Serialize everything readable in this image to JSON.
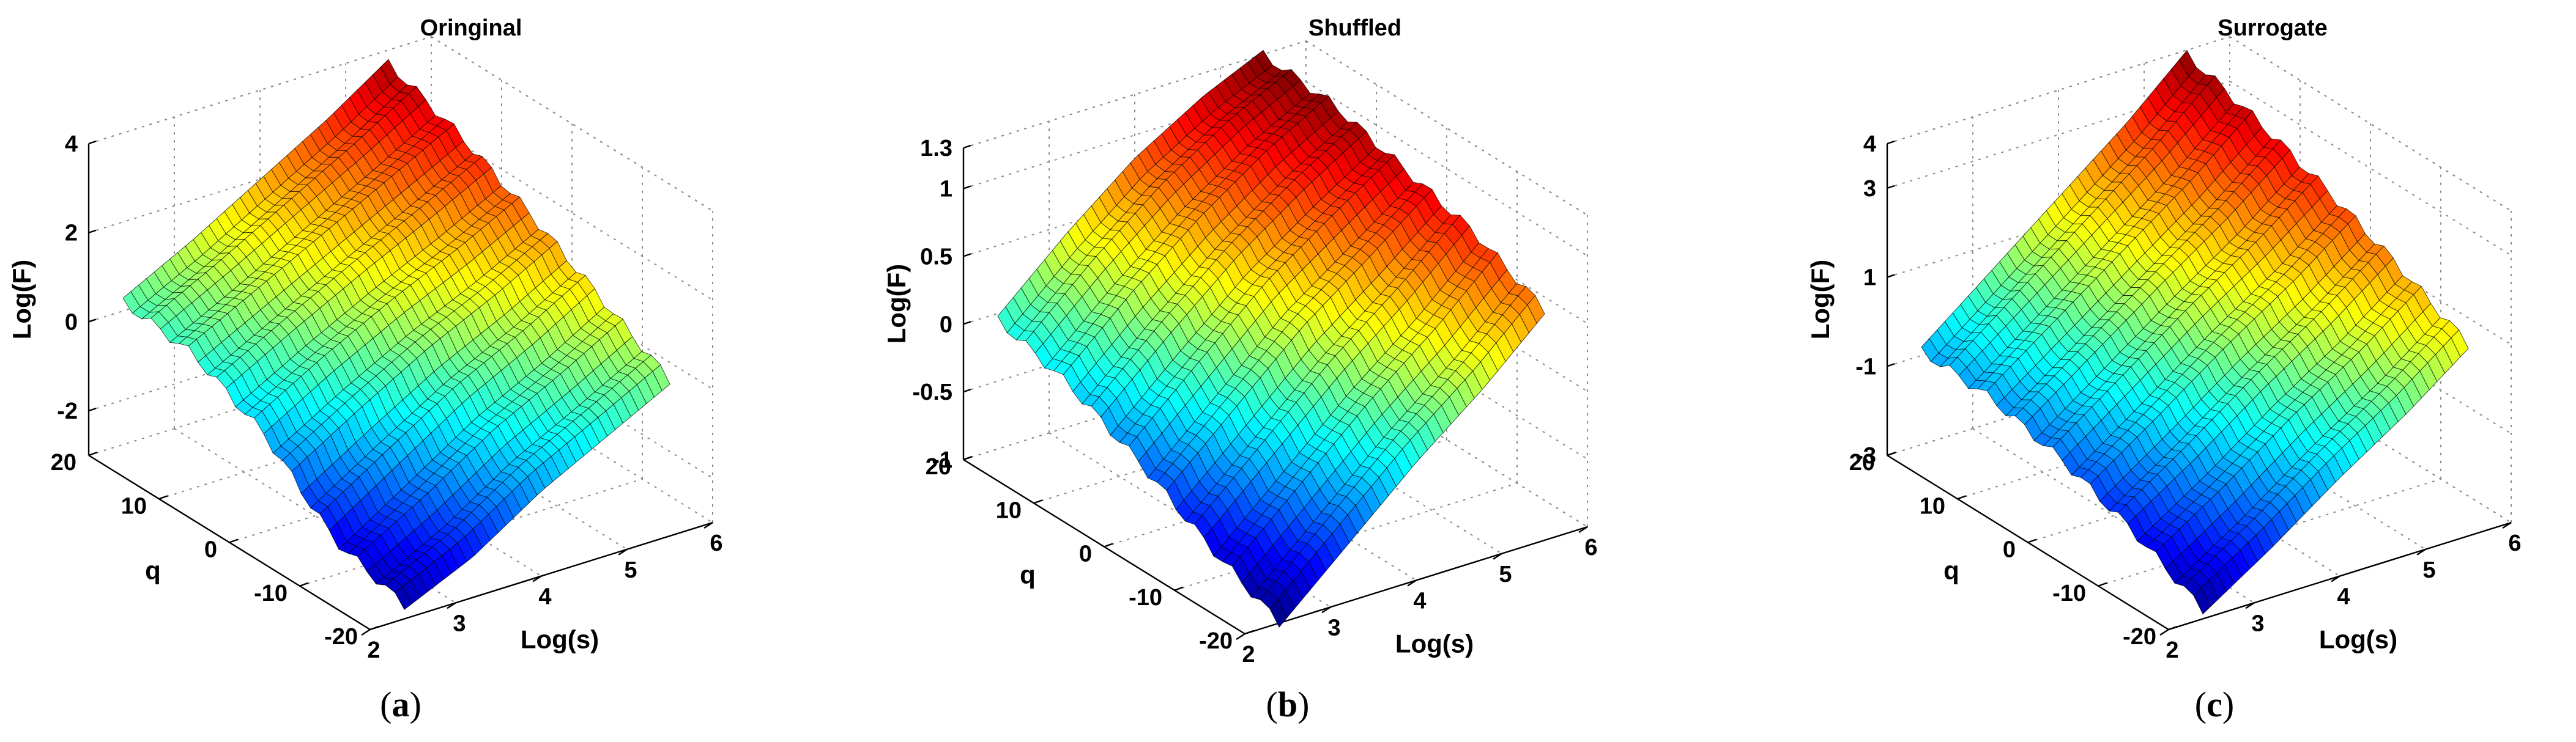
{
  "chart_data": [
    {
      "type": "surface3d",
      "panel_label": "a",
      "title": "Oringinal",
      "xlabel": "Log(s)",
      "ylabel": "q",
      "zlabel": "Log(F)",
      "xlim": [
        2,
        6
      ],
      "ylim": [
        -20,
        20
      ],
      "zlim": [
        -3,
        4
      ],
      "xticks": [
        2,
        3,
        4,
        5,
        6
      ],
      "yticks": [
        -20,
        -10,
        0,
        10,
        20
      ],
      "zticks": [
        -2,
        0,
        2,
        4
      ],
      "colormap": "jet",
      "surface": {
        "q_values": [
          -20,
          -10,
          0,
          10,
          20
        ],
        "log_s_values": [
          2.4,
          3.2,
          4.0,
          4.8,
          5.5
        ],
        "log_f_rows": [
          [
            -2.7,
            -2.0,
            -1.0,
            -0.2,
            0.5
          ],
          [
            -2.2,
            -1.2,
            -0.2,
            0.6,
            1.4
          ],
          [
            -0.8,
            0.1,
            0.9,
            1.6,
            2.3
          ],
          [
            0.0,
            0.8,
            1.6,
            2.4,
            3.1
          ],
          [
            0.2,
            1.0,
            1.9,
            2.8,
            3.7
          ]
        ]
      }
    },
    {
      "type": "surface3d",
      "panel_label": "b",
      "title": "Shuffled",
      "xlabel": "Log(s)",
      "ylabel": "q",
      "zlabel": "Log(F)",
      "xlim": [
        2,
        6
      ],
      "ylim": [
        -20,
        20
      ],
      "zlim": [
        -1,
        1.3
      ],
      "xticks": [
        2,
        3,
        4,
        5,
        6
      ],
      "yticks": [
        -20,
        -10,
        0,
        10,
        20
      ],
      "zticks": [
        -1,
        -0.5,
        0,
        0.5,
        1,
        1.3
      ],
      "colormap": "jet",
      "surface": {
        "q_values": [
          -20,
          -10,
          0,
          10,
          20
        ],
        "log_s_values": [
          2.4,
          3.2,
          4.0,
          4.8,
          5.5
        ],
        "log_f_rows": [
          [
            -1.0,
            -0.55,
            -0.1,
            0.3,
            0.7
          ],
          [
            -0.75,
            -0.3,
            0.15,
            0.55,
            0.95
          ],
          [
            -0.45,
            0.0,
            0.45,
            0.8,
            1.1
          ],
          [
            -0.2,
            0.25,
            0.65,
            1.0,
            1.25
          ],
          [
            -0.05,
            0.4,
            0.8,
            1.1,
            1.3
          ]
        ]
      }
    },
    {
      "type": "surface3d",
      "panel_label": "c",
      "title": "Surrogate",
      "xlabel": "Log(s)",
      "ylabel": "q",
      "zlabel": "Log(F)",
      "xlim": [
        2,
        6
      ],
      "ylim": [
        -20,
        20
      ],
      "zlim": [
        -3,
        4
      ],
      "xticks": [
        2,
        3,
        4,
        5,
        6
      ],
      "yticks": [
        -20,
        -10,
        0,
        10,
        20
      ],
      "zticks": [
        -3,
        -1,
        1,
        3,
        4
      ],
      "colormap": "jet",
      "surface": {
        "q_values": [
          -20,
          -10,
          0,
          10,
          20
        ],
        "log_s_values": [
          2.4,
          3.2,
          4.0,
          4.8,
          5.5
        ],
        "log_f_rows": [
          [
            -2.8,
            -1.8,
            -0.7,
            0.3,
            1.3
          ],
          [
            -2.0,
            -1.0,
            0.1,
            1.1,
            2.1
          ],
          [
            -1.4,
            -0.3,
            0.8,
            1.8,
            2.8
          ],
          [
            -1.0,
            0.1,
            1.2,
            2.3,
            3.4
          ],
          [
            -0.9,
            0.3,
            1.5,
            2.7,
            3.9
          ]
        ]
      }
    }
  ]
}
